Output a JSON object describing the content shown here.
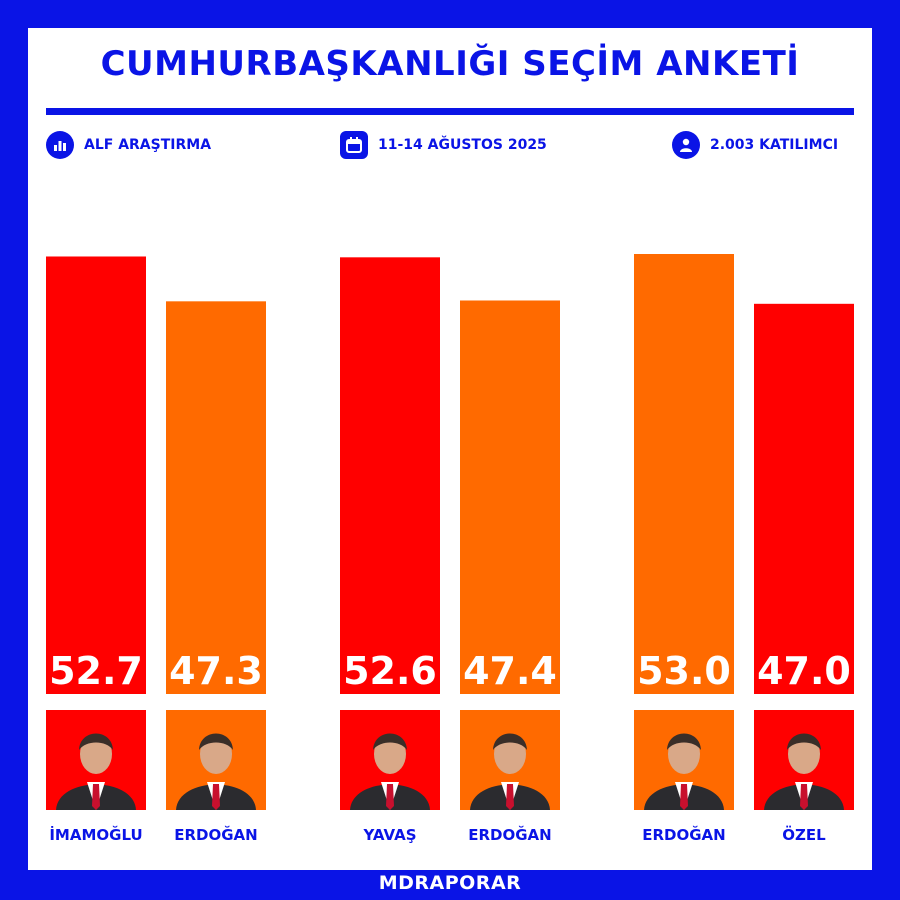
{
  "header": {
    "title": "CUMHURBAŞKANLIĞI SEÇİM ANKETİ",
    "source": "ALF ARAŞTIRMA",
    "dates": "11-14 AĞUSTOS 2025",
    "participants": "2.003 KATILIMCI"
  },
  "footer": {
    "brand": "MDRAPORAR"
  },
  "colors": {
    "brand": "#0a14e6",
    "red": "#ff0000",
    "orange": "#ff6a00"
  },
  "icons": [
    "bar-chart-icon",
    "calendar-icon",
    "user-icon"
  ],
  "chart_data": {
    "type": "bar",
    "title": "CUMHURBAŞKANLIĞI SEÇİM ANKETİ",
    "groups": [
      {
        "bars": [
          {
            "label": "İMAMOĞLU",
            "value": 52.7,
            "display": "52.7",
            "color": "#ff0000"
          },
          {
            "label": "ERDOĞAN",
            "value": 47.3,
            "display": "47.3",
            "color": "#ff6a00"
          }
        ]
      },
      {
        "bars": [
          {
            "label": "YAVAŞ",
            "value": 52.6,
            "display": "52.6",
            "color": "#ff0000"
          },
          {
            "label": "ERDOĞAN",
            "value": 47.4,
            "display": "47.4",
            "color": "#ff6a00"
          }
        ]
      },
      {
        "bars": [
          {
            "label": "ERDOĞAN",
            "value": 53.0,
            "display": "53.0",
            "color": "#ff6a00"
          },
          {
            "label": "ÖZEL",
            "value": 47.0,
            "display": "47.0",
            "color": "#ff0000"
          }
        ]
      }
    ],
    "grid": false,
    "legend": "none"
  }
}
